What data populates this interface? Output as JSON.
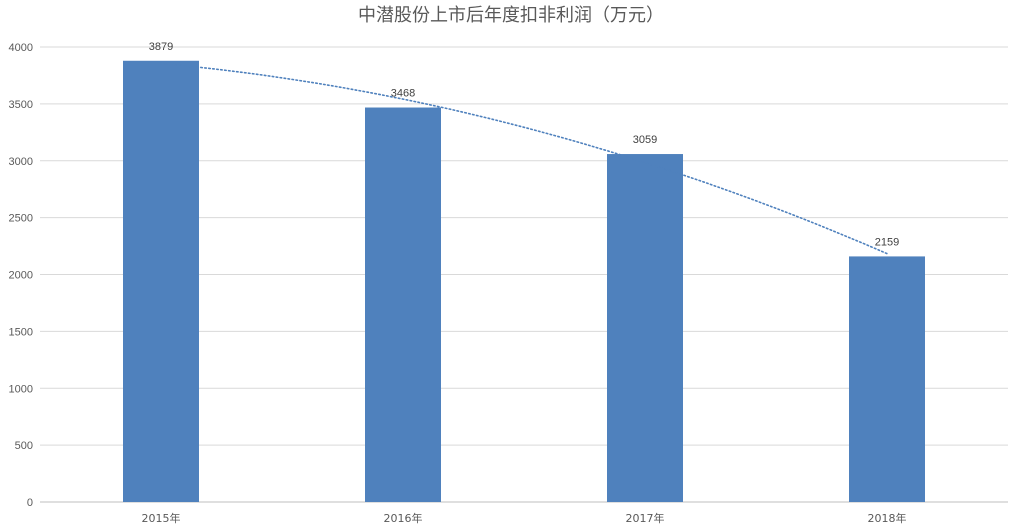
{
  "chart_data": {
    "type": "bar",
    "title": "中潜股份上市后年度扣非利润（万元）",
    "xlabel": "",
    "ylabel": "",
    "categories": [
      "2015年",
      "2016年",
      "2017年",
      "2018年"
    ],
    "series": [
      {
        "values": [
          3879,
          3468,
          3059,
          2159
        ],
        "color": "#4f81bd"
      }
    ],
    "data_labels": [
      "3879",
      "3468",
      "3059",
      "2159"
    ],
    "ylim": [
      0,
      4000
    ],
    "yticks": [
      0,
      500,
      1000,
      1500,
      2000,
      2500,
      3000,
      3500,
      4000
    ],
    "ytick_labels": [
      "0",
      "500",
      "1000",
      "1500",
      "2000",
      "2500",
      "3000",
      "3500",
      "4000"
    ],
    "grid": true,
    "grid_color": "#d9d9d9",
    "axis_color": "#bfbfbf",
    "legend": "none",
    "trendline": {
      "type": "polynomial",
      "order": 2,
      "style": "dotted",
      "color": "#4f81bd"
    }
  }
}
